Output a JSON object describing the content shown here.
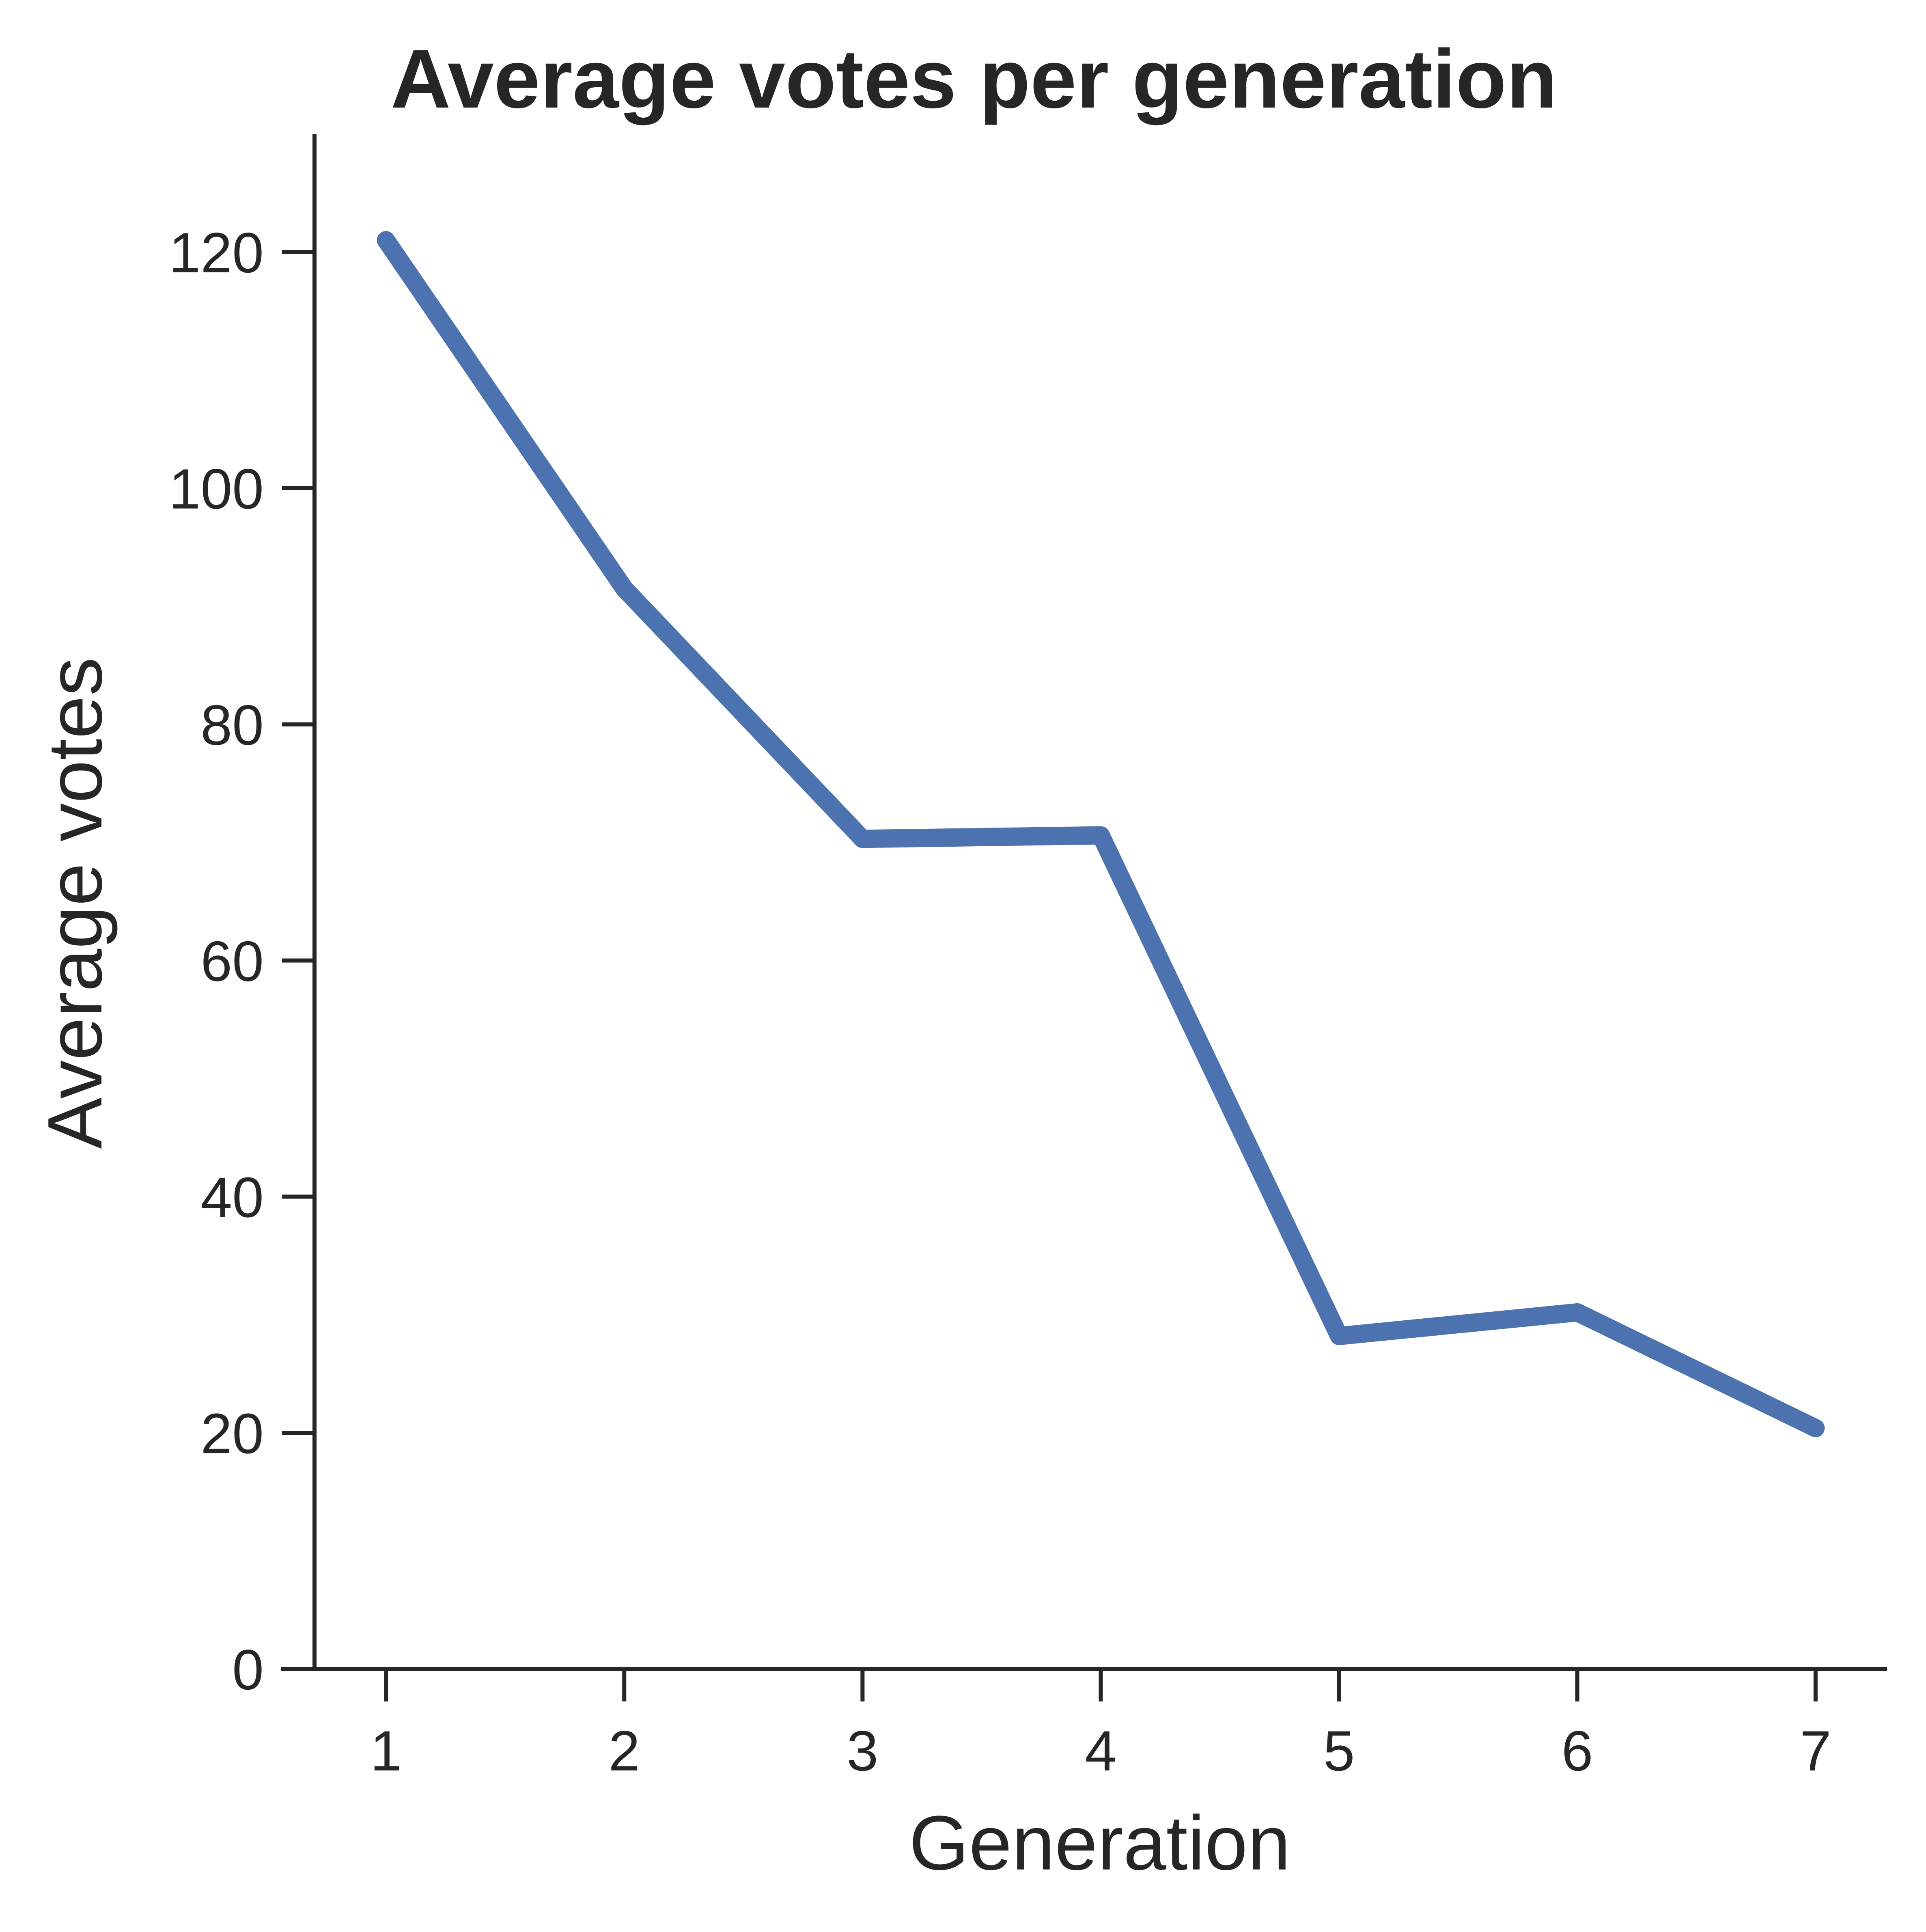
{
  "chart_data": {
    "type": "line",
    "title": "Average votes per generation",
    "xlabel": "Generation",
    "ylabel": "Average votes",
    "x": [
      1,
      2,
      3,
      4,
      5,
      6,
      7
    ],
    "x_tick_labels": [
      "1",
      "2",
      "3",
      "4",
      "5",
      "6",
      "7"
    ],
    "series": [
      {
        "values": [
          121,
          91.5,
          70.3,
          70.6,
          28.2,
          30.2,
          20.4
        ]
      }
    ],
    "ylim": [
      0,
      130
    ],
    "y_ticks": [
      0,
      20,
      40,
      60,
      80,
      100,
      120
    ],
    "y_tick_labels": [
      "0",
      "20",
      "40",
      "60",
      "80",
      "100",
      "120"
    ],
    "xlim": [
      0.7,
      7.3
    ],
    "grid": false,
    "colors": {
      "line": "#4c72b0",
      "axis": "#262626"
    }
  }
}
